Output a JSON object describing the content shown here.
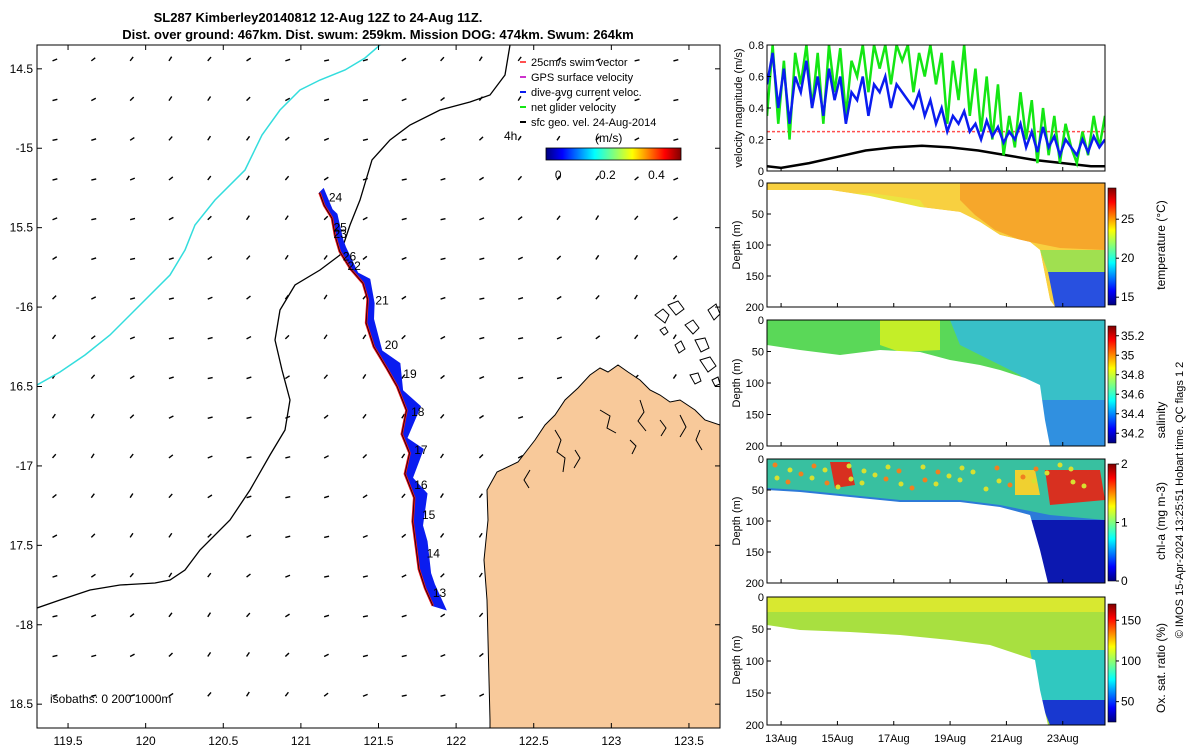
{
  "header": {
    "title_line1": "SL287 Kimberley20140812 12-Aug 12Z to 24-Aug 11Z.",
    "title_line2": "Dist. over ground: 467km. Dist. swum: 259km. Mission DOG: 474km. Swum: 264km"
  },
  "side_note": "© IMOS 15-Apr-2024 13:25:51 Hobart time. QC flags 1  2",
  "colors": {
    "land": "#f8c99a",
    "track_red": "#e8141a",
    "current_blue": "#0a1cf0",
    "net_green": "#14e614",
    "shelf_cyan": "#33dddd",
    "swim_red": "#ff5050"
  },
  "chart_data": [
    {
      "id": "map",
      "type": "scatter",
      "title": "Glider track map",
      "x_ticks": [
        119.5,
        120,
        120.5,
        121,
        121.5,
        122,
        122.5,
        123,
        123.5
      ],
      "y_ticks": [
        -14.5,
        -15,
        -15.5,
        -16,
        -16.5,
        -17,
        -17.5,
        -18,
        -18.5
      ],
      "x_tick_labels": [
        "119.5",
        "120",
        "120.5",
        "121",
        "121.5",
        "122",
        "122.5",
        "123",
        "123.5"
      ],
      "y_tick_labels": [
        "14.5",
        "-15",
        "15.5",
        "-16",
        "16.5",
        "-17",
        "17.5",
        "-18",
        "18.5"
      ],
      "xlim": [
        119.3,
        123.7
      ],
      "ylim": [
        -18.65,
        -14.35
      ],
      "legend": {
        "position": "top-right",
        "entries": [
          "25cm/s swim vector",
          "GPS surface velocity",
          "dive-avg current veloc.",
          "net glider velocity",
          "sfc geo. vel. 24-Aug-2014"
        ],
        "time_label": "4h"
      },
      "colorbar": {
        "label": "(m/s)",
        "ticks": [
          "0",
          "0.2",
          "0.4"
        ],
        "tick_values": [
          0,
          0.2,
          0.4
        ],
        "range": [
          -0.05,
          0.5
        ]
      },
      "isobath_label": "isobaths: 0   200  1000m",
      "day_labels": [
        {
          "label": "24",
          "lon": 121.18,
          "lat": -15.31
        },
        {
          "label": "25",
          "lon": 121.21,
          "lat": -15.5
        },
        {
          "label": "23",
          "lon": 121.21,
          "lat": -15.54
        },
        {
          "label": "26",
          "lon": 121.27,
          "lat": -15.68
        },
        {
          "label": "22",
          "lon": 121.3,
          "lat": -15.74
        },
        {
          "label": "21",
          "lon": 121.48,
          "lat": -15.96
        },
        {
          "label": "20",
          "lon": 121.54,
          "lat": -16.24
        },
        {
          "label": "19",
          "lon": 121.66,
          "lat": -16.42
        },
        {
          "label": "18",
          "lon": 121.71,
          "lat": -16.66
        },
        {
          "label": "17",
          "lon": 121.73,
          "lat": -16.9
        },
        {
          "label": "16",
          "lon": 121.73,
          "lat": -17.12
        },
        {
          "label": "15",
          "lon": 121.78,
          "lat": -17.31
        },
        {
          "label": "14",
          "lon": 121.81,
          "lat": -17.55
        },
        {
          "label": "13",
          "lon": 121.85,
          "lat": -17.8
        }
      ],
      "track": [
        [
          121.12,
          -15.28
        ],
        [
          121.15,
          -15.36
        ],
        [
          121.2,
          -15.44
        ],
        [
          121.22,
          -15.55
        ],
        [
          121.25,
          -15.65
        ],
        [
          121.32,
          -15.76
        ],
        [
          121.4,
          -15.85
        ],
        [
          121.43,
          -15.95
        ],
        [
          121.42,
          -16.1
        ],
        [
          121.47,
          -16.25
        ],
        [
          121.55,
          -16.38
        ],
        [
          121.62,
          -16.5
        ],
        [
          121.68,
          -16.65
        ],
        [
          121.65,
          -16.8
        ],
        [
          121.7,
          -16.92
        ],
        [
          121.67,
          -17.05
        ],
        [
          121.73,
          -17.2
        ],
        [
          121.72,
          -17.35
        ],
        [
          121.74,
          -17.5
        ],
        [
          121.76,
          -17.65
        ],
        [
          121.8,
          -17.77
        ],
        [
          121.85,
          -17.88
        ]
      ]
    },
    {
      "id": "velocity",
      "type": "line",
      "ylabel": "velocity magnitude (m/s)",
      "ylim": [
        0,
        0.8
      ],
      "y_ticks": [
        0,
        0.2,
        0.4,
        0.6,
        0.8
      ],
      "y_tick_labels": [
        "0",
        "0.2",
        "0.4",
        "0.6",
        "0.8"
      ],
      "xlim": [
        12.5,
        24.5
      ],
      "series": [
        {
          "name": "swim vector",
          "color": "#ff5050",
          "x": [
            12.5,
            24.5
          ],
          "values": [
            0.25,
            0.25
          ]
        },
        {
          "name": "sfc geo. vel.",
          "color": "#000000",
          "x": [
            12.5,
            13,
            14,
            15,
            16,
            17,
            18,
            19,
            20,
            21,
            22,
            23,
            24,
            24.5
          ],
          "values": [
            0.03,
            0.02,
            0.05,
            0.09,
            0.13,
            0.15,
            0.16,
            0.15,
            0.13,
            0.1,
            0.07,
            0.05,
            0.03,
            0.03
          ]
        },
        {
          "name": "net glider velocity",
          "color": "#14e614",
          "x": [
            12.5,
            12.7,
            12.9,
            13.1,
            13.3,
            13.5,
            13.7,
            13.9,
            14.1,
            14.3,
            14.5,
            14.7,
            14.9,
            15.1,
            15.3,
            15.5,
            15.7,
            15.9,
            16.1,
            16.3,
            16.5,
            16.7,
            16.9,
            17.1,
            17.3,
            17.5,
            17.7,
            17.9,
            18.1,
            18.3,
            18.5,
            18.7,
            18.9,
            19.1,
            19.3,
            19.5,
            19.7,
            19.9,
            20.1,
            20.3,
            20.5,
            20.7,
            20.9,
            21.1,
            21.3,
            21.5,
            21.7,
            21.9,
            22.1,
            22.3,
            22.5,
            22.7,
            22.9,
            23.1,
            23.3,
            23.5,
            23.7,
            23.9,
            24.1,
            24.3,
            24.5
          ],
          "values": [
            0.35,
            0.8,
            0.3,
            0.7,
            0.2,
            0.75,
            0.55,
            0.8,
            0.4,
            0.75,
            0.3,
            0.8,
            0.5,
            0.78,
            0.35,
            0.7,
            0.6,
            0.8,
            0.5,
            0.8,
            0.65,
            0.8,
            0.55,
            0.8,
            0.7,
            0.8,
            0.5,
            0.75,
            0.6,
            0.8,
            0.55,
            0.75,
            0.3,
            0.7,
            0.45,
            0.8,
            0.35,
            0.65,
            0.25,
            0.6,
            0.2,
            0.55,
            0.1,
            0.35,
            0.15,
            0.5,
            0.2,
            0.45,
            0.05,
            0.4,
            0.1,
            0.35,
            0.05,
            0.3,
            0.15,
            0.05,
            0.25,
            0.1,
            0.35,
            0.15,
            0.35
          ]
        },
        {
          "name": "dive-avg current veloc.",
          "color": "#0a1cf0",
          "x": [
            12.5,
            12.7,
            12.9,
            13.1,
            13.3,
            13.5,
            13.7,
            13.9,
            14.1,
            14.3,
            14.5,
            14.7,
            14.9,
            15.1,
            15.3,
            15.5,
            15.7,
            15.9,
            16.1,
            16.3,
            16.5,
            16.7,
            16.9,
            17.1,
            17.3,
            17.5,
            17.7,
            17.9,
            18.1,
            18.3,
            18.5,
            18.7,
            18.9,
            19.1,
            19.3,
            19.5,
            19.7,
            19.9,
            20.1,
            20.3,
            20.5,
            20.7,
            20.9,
            21.1,
            21.3,
            21.5,
            21.7,
            21.9,
            22.1,
            22.3,
            22.5,
            22.7,
            22.9,
            23.1,
            23.3,
            23.5,
            23.7,
            23.9,
            24.1,
            24.3,
            24.5
          ],
          "values": [
            0.55,
            0.75,
            0.4,
            0.65,
            0.3,
            0.6,
            0.5,
            0.7,
            0.4,
            0.6,
            0.35,
            0.65,
            0.45,
            0.6,
            0.3,
            0.5,
            0.45,
            0.6,
            0.35,
            0.55,
            0.5,
            0.6,
            0.4,
            0.55,
            0.5,
            0.45,
            0.4,
            0.5,
            0.35,
            0.45,
            0.3,
            0.4,
            0.25,
            0.35,
            0.3,
            0.38,
            0.25,
            0.3,
            0.2,
            0.32,
            0.22,
            0.28,
            0.18,
            0.25,
            0.2,
            0.3,
            0.15,
            0.25,
            0.12,
            0.28,
            0.15,
            0.22,
            0.1,
            0.2,
            0.15,
            0.1,
            0.2,
            0.12,
            0.22,
            0.15,
            0.2
          ]
        }
      ]
    },
    {
      "id": "temperature",
      "type": "heatmap",
      "ylabel": "Depth (m)",
      "cblabel": "temperature (°C)",
      "ylim": [
        200,
        0
      ],
      "y_ticks": [
        0,
        50,
        100,
        150,
        200
      ],
      "cb_ticks": [
        15,
        20,
        25
      ],
      "cb_range": [
        14,
        29
      ],
      "cb_tick_labels": [
        "15",
        "20",
        "25"
      ]
    },
    {
      "id": "salinity",
      "type": "heatmap",
      "ylabel": "Depth (m)",
      "cblabel": "salinity",
      "ylim": [
        200,
        0
      ],
      "y_ticks": [
        0,
        50,
        100,
        150,
        200
      ],
      "cb_ticks": [
        34.2,
        34.4,
        34.6,
        34.8,
        35,
        35.2
      ],
      "cb_range": [
        34.1,
        35.3
      ],
      "cb_tick_labels": [
        "34.2",
        "34.4",
        "34.6",
        "34.8",
        "35",
        "35.2"
      ]
    },
    {
      "id": "chla",
      "type": "heatmap",
      "ylabel": "Depth (m)",
      "cblabel": "chl-a (mg m-3)",
      "ylim": [
        200,
        0
      ],
      "y_ticks": [
        0,
        50,
        100,
        150,
        200
      ],
      "cb_ticks": [
        0,
        1,
        2
      ],
      "cb_range": [
        0,
        2
      ],
      "cb_tick_labels": [
        "0",
        "1",
        "2"
      ]
    },
    {
      "id": "oxygen",
      "type": "heatmap",
      "ylabel": "Depth (m)",
      "cblabel": "Ox. sat. ratio (%)",
      "ylim": [
        200,
        0
      ],
      "y_ticks": [
        0,
        50,
        100,
        150,
        200
      ],
      "cb_ticks": [
        50,
        100,
        150
      ],
      "cb_range": [
        25,
        170
      ],
      "cb_tick_labels": [
        "50",
        "100",
        "150"
      ],
      "x_ticks": [
        13,
        15,
        17,
        19,
        21,
        23
      ],
      "x_tick_labels": [
        "13Aug",
        "15Aug",
        "17Aug",
        "19Aug",
        "21Aug",
        "23Aug"
      ]
    }
  ]
}
